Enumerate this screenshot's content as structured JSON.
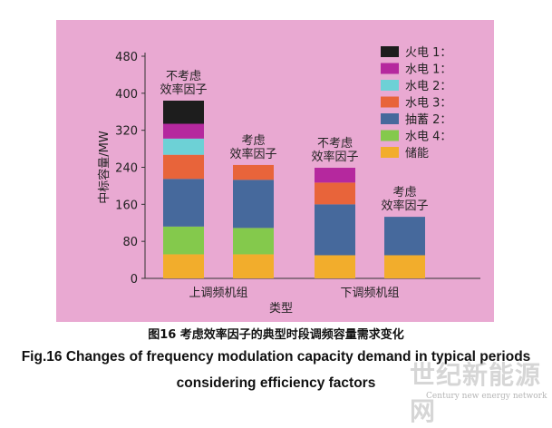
{
  "chart_data": {
    "type": "bar",
    "stacked": true,
    "categories": [
      "上调频机组",
      "上调频机组",
      "下调频机组",
      "下调频机组"
    ],
    "bar_labels": [
      "不考虑\n效率因子",
      "考虑\n效率因子",
      "不考虑\n效率因子",
      "考虑\n效率因子"
    ],
    "group_labels": [
      "上调频机组",
      "下调频机组"
    ],
    "xlabel": "类型",
    "ylabel": "中标容量/MW",
    "ylim": [
      0,
      480
    ],
    "yticks": [
      0,
      80,
      160,
      240,
      320,
      400,
      480
    ],
    "grid": false,
    "legend_position": "top-right",
    "series": [
      {
        "name": "储能",
        "color": "#f2ad2c",
        "values": [
          52,
          52,
          50,
          50
        ]
      },
      {
        "name": "水电 4",
        "color": "#84c94c",
        "values": [
          60,
          57,
          0,
          0
        ]
      },
      {
        "name": "抽蓄 2",
        "color": "#46699c",
        "values": [
          103,
          104,
          110,
          83
        ]
      },
      {
        "name": "水电 3",
        "color": "#e8643a",
        "values": [
          52,
          32,
          47,
          0
        ]
      },
      {
        "name": "水电 2",
        "color": "#6dd1d6",
        "values": [
          35,
          0,
          0,
          0
        ]
      },
      {
        "name": "水电 1",
        "color": "#b5289e",
        "values": [
          32,
          0,
          32,
          0
        ]
      },
      {
        "name": "火电 1",
        "color": "#1d1d1d",
        "values": [
          50,
          0,
          0,
          0
        ]
      }
    ],
    "legend_order": [
      "火电 1：",
      "水电 1：",
      "水电 2：",
      "水电 3：",
      "抽蓄 2：",
      "水电 4：",
      "储能"
    ],
    "legend_colors": [
      "#1d1d1d",
      "#b5289e",
      "#6dd1d6",
      "#e8643a",
      "#46699c",
      "#84c94c",
      "#f2ad2c"
    ]
  },
  "caption": {
    "cn": "图16  考虑效率因子的典型时段调频容量需求变化",
    "en_line1": "Fig.16  Changes of frequency modulation capacity demand in typical periods",
    "en_line2": "considering efficiency factors"
  },
  "watermark": {
    "main": "世纪新能源网",
    "sub": "Century new energy network"
  }
}
